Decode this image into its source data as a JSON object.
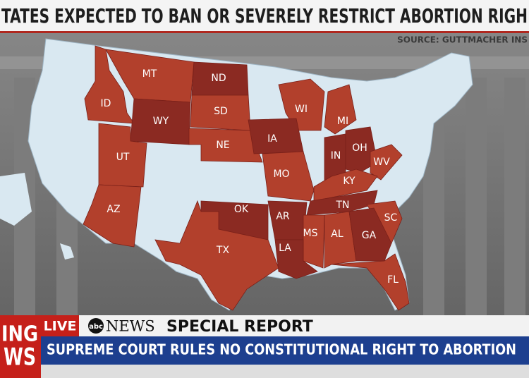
{
  "header": {
    "title": "TATES EXPECTED TO BAN OR SEVERELY RESTRICT ABORTION RIGH",
    "source": "SOURCE: GUTTMACHER INS"
  },
  "map": {
    "states": [
      "MT",
      "ND",
      "ID",
      "WY",
      "SD",
      "WI",
      "MI",
      "UT",
      "NE",
      "IA",
      "IN",
      "OH",
      "WV",
      "MO",
      "KY",
      "AZ",
      "OK",
      "AR",
      "TN",
      "SC",
      "MS",
      "AL",
      "GA",
      "TX",
      "LA",
      "FL"
    ]
  },
  "banner": {
    "breaking_top": "ING",
    "breaking_bottom": "WS",
    "live": "LIVE",
    "network_logo": "abc",
    "network": "NEWS",
    "program": "SPECIAL REPORT",
    "headline": "SUPREME COURT RULES NO CONSTITUTIONAL RIGHT TO ABORTION"
  }
}
